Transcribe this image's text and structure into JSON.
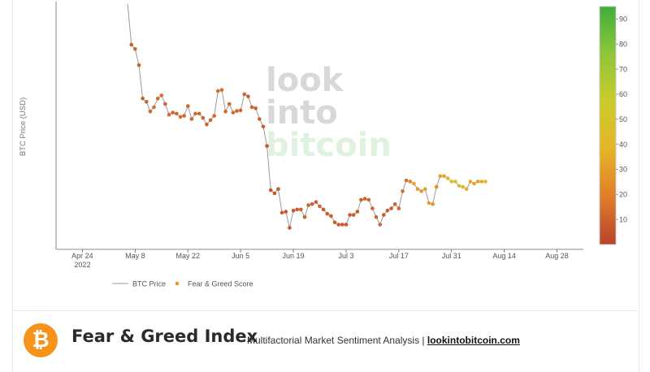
{
  "chart_data": {
    "type": "scatter",
    "ylabel": "BTC Price (USD)",
    "x_ticks": [
      {
        "date": "2022-04-24",
        "label": "Apr 24",
        "sublabel": "2022"
      },
      {
        "date": "2022-05-08",
        "label": "May 8"
      },
      {
        "date": "2022-05-22",
        "label": "May 22"
      },
      {
        "date": "2022-06-05",
        "label": "Jun 5"
      },
      {
        "date": "2022-06-19",
        "label": "Jun 19"
      },
      {
        "date": "2022-07-03",
        "label": "Jul 3"
      },
      {
        "date": "2022-07-17",
        "label": "Jul 17"
      },
      {
        "date": "2022-07-31",
        "label": "Jul 31"
      },
      {
        "date": "2022-08-14",
        "label": "Aug 14"
      },
      {
        "date": "2022-08-28",
        "label": "Aug 28"
      }
    ],
    "xlim": [
      "2022-04-17",
      "2022-09-04"
    ],
    "ylim": [
      17000,
      40000
    ],
    "colorbar": {
      "ticks": [
        10,
        20,
        30,
        40,
        50,
        60,
        70,
        80,
        90
      ],
      "range": [
        0,
        95
      ],
      "colors": [
        "#b8432d",
        "#e07d2a",
        "#e6b42a",
        "#c9cc2a",
        "#8fc63a",
        "#3fae3e"
      ]
    },
    "legend": {
      "position": "bottom",
      "items": [
        {
          "label": "BTC Price",
          "marker": "line",
          "color": "#999999"
        },
        {
          "label": "Fear & Greed Score",
          "marker": "dot",
          "color": "#e69a2e"
        }
      ]
    },
    "watermark": {
      "lines": [
        "look",
        "into",
        "bitcoin"
      ]
    },
    "series": [
      {
        "name": "BTC Price",
        "points": [
          [
            "2022-05-06",
            39800
          ],
          [
            "2022-05-07",
            36000
          ],
          [
            "2022-05-08",
            35600
          ],
          [
            "2022-05-09",
            34100
          ],
          [
            "2022-05-10",
            31000
          ],
          [
            "2022-05-11",
            30700
          ],
          [
            "2022-05-12",
            29800
          ],
          [
            "2022-05-13",
            30200
          ],
          [
            "2022-05-14",
            31000
          ],
          [
            "2022-05-15",
            31300
          ],
          [
            "2022-05-16",
            30500
          ],
          [
            "2022-05-17",
            29500
          ],
          [
            "2022-05-18",
            29700
          ],
          [
            "2022-05-19",
            29600
          ],
          [
            "2022-05-20",
            29300
          ],
          [
            "2022-05-21",
            29400
          ],
          [
            "2022-05-22",
            30300
          ],
          [
            "2022-05-23",
            29100
          ],
          [
            "2022-05-24",
            29600
          ],
          [
            "2022-05-25",
            29600
          ],
          [
            "2022-05-26",
            29200
          ],
          [
            "2022-05-27",
            28600
          ],
          [
            "2022-05-28",
            29000
          ],
          [
            "2022-05-29",
            29400
          ],
          [
            "2022-05-30",
            31700
          ],
          [
            "2022-05-31",
            31800
          ],
          [
            "2022-06-01",
            29800
          ],
          [
            "2022-06-02",
            30500
          ],
          [
            "2022-06-03",
            29700
          ],
          [
            "2022-06-04",
            29850
          ],
          [
            "2022-06-05",
            29900
          ],
          [
            "2022-06-06",
            31400
          ],
          [
            "2022-06-07",
            31200
          ],
          [
            "2022-06-08",
            30200
          ],
          [
            "2022-06-09",
            30100
          ],
          [
            "2022-06-10",
            29100
          ],
          [
            "2022-06-11",
            28400
          ],
          [
            "2022-06-12",
            26600
          ],
          [
            "2022-06-13",
            22500
          ],
          [
            "2022-06-14",
            22200
          ],
          [
            "2022-06-15",
            22600
          ],
          [
            "2022-06-16",
            20400
          ],
          [
            "2022-06-17",
            20500
          ],
          [
            "2022-06-18",
            19000
          ],
          [
            "2022-06-19",
            20600
          ],
          [
            "2022-06-20",
            20700
          ],
          [
            "2022-06-21",
            20700
          ],
          [
            "2022-06-22",
            20000
          ],
          [
            "2022-06-23",
            21100
          ],
          [
            "2022-06-24",
            21200
          ],
          [
            "2022-06-25",
            21400
          ],
          [
            "2022-06-26",
            21000
          ],
          [
            "2022-06-27",
            20700
          ],
          [
            "2022-06-28",
            20300
          ],
          [
            "2022-06-29",
            20100
          ],
          [
            "2022-06-30",
            19500
          ],
          [
            "2022-07-01",
            19300
          ],
          [
            "2022-07-02",
            19300
          ],
          [
            "2022-07-03",
            19300
          ],
          [
            "2022-07-04",
            20200
          ],
          [
            "2022-07-05",
            20200
          ],
          [
            "2022-07-06",
            20500
          ],
          [
            "2022-07-07",
            21600
          ],
          [
            "2022-07-08",
            21700
          ],
          [
            "2022-07-09",
            21600
          ],
          [
            "2022-07-10",
            20800
          ],
          [
            "2022-07-11",
            20000
          ],
          [
            "2022-07-12",
            19300
          ],
          [
            "2022-07-13",
            20200
          ],
          [
            "2022-07-14",
            20600
          ],
          [
            "2022-07-15",
            20800
          ],
          [
            "2022-07-16",
            21200
          ],
          [
            "2022-07-17",
            20800
          ],
          [
            "2022-07-18",
            22400
          ],
          [
            "2022-07-19",
            23400
          ],
          [
            "2022-07-20",
            23300
          ],
          [
            "2022-07-21",
            23100
          ],
          [
            "2022-07-22",
            22600
          ],
          [
            "2022-07-23",
            22400
          ],
          [
            "2022-07-24",
            22600
          ],
          [
            "2022-07-25",
            21300
          ],
          [
            "2022-07-26",
            21200
          ],
          [
            "2022-07-27",
            22800
          ],
          [
            "2022-07-28",
            23800
          ],
          [
            "2022-07-29",
            23800
          ],
          [
            "2022-07-30",
            23600
          ],
          [
            "2022-07-31",
            23300
          ],
          [
            "2022-08-01",
            23300
          ],
          [
            "2022-08-02",
            22900
          ],
          [
            "2022-08-03",
            22800
          ],
          [
            "2022-08-04",
            22600
          ],
          [
            "2022-08-05",
            23300
          ],
          [
            "2022-08-06",
            23100
          ],
          [
            "2022-08-07",
            23300
          ],
          [
            "2022-08-08",
            23300
          ],
          [
            "2022-08-09",
            23300
          ]
        ]
      },
      {
        "name": "Fear & Greed Score",
        "values": [
          8,
          11,
          10,
          9,
          10,
          11,
          13,
          12,
          14,
          11,
          13,
          12,
          12,
          13,
          11,
          12,
          11,
          12,
          12,
          11,
          10,
          11,
          12,
          13,
          13,
          13,
          11,
          12,
          11,
          11,
          10,
          10,
          10,
          9,
          10,
          9,
          8,
          7,
          6,
          6,
          7,
          7,
          7,
          8,
          8,
          9,
          9,
          10,
          9,
          9,
          10,
          9,
          9,
          8,
          8,
          8,
          7,
          7,
          8,
          8,
          8,
          9,
          10,
          11,
          11,
          11,
          10,
          9,
          9,
          10,
          11,
          12,
          13,
          15,
          22,
          32,
          30,
          29,
          31,
          30,
          27,
          26,
          31,
          33,
          39,
          45,
          43,
          40,
          38,
          37,
          35,
          33,
          31,
          36,
          42,
          44
        ]
      }
    ]
  },
  "footer": {
    "logo_glyph": "₿",
    "title": "Fear & Greed Index",
    "subtitle": "Multifactorial Market Sentiment Analysis | ",
    "link_text": "lookintobitcoin.com"
  }
}
